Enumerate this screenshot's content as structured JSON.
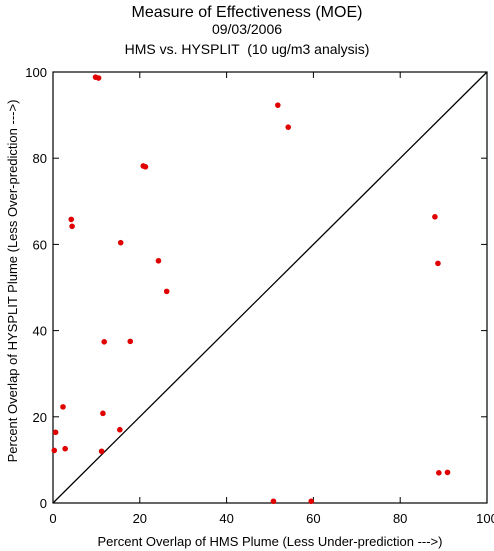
{
  "chart_data": {
    "type": "scatter",
    "title": "Measure of Effectiveness (MOE)",
    "subtitle_date": "09/03/2006",
    "subtitle_analysis": "HMS vs. HYSPLIT  (10 ug/m3 analysis)",
    "xlabel": "Percent Overlap of HMS Plume (Less Under-prediction --->)",
    "ylabel": "Percent Overlap of HYSPLIT Plume (Less Over-prediction --->)",
    "xlim": [
      0,
      100
    ],
    "ylim": [
      0,
      100
    ],
    "xticks": [
      0,
      20,
      40,
      60,
      80,
      100
    ],
    "yticks": [
      0,
      20,
      40,
      60,
      80,
      100
    ],
    "grid": false,
    "reference_line": "y = x diagonal",
    "marker_color": "#e00000",
    "series": [
      {
        "points": [
          {
            "x": 9.8,
            "y": 98.8
          },
          {
            "x": 10.5,
            "y": 98.6
          },
          {
            "x": 51.8,
            "y": 92.3
          },
          {
            "x": 54.2,
            "y": 87.2
          },
          {
            "x": 20.8,
            "y": 78.2
          },
          {
            "x": 21.3,
            "y": 78.0
          },
          {
            "x": 4.2,
            "y": 65.8
          },
          {
            "x": 4.4,
            "y": 64.2
          },
          {
            "x": 15.6,
            "y": 60.4
          },
          {
            "x": 24.3,
            "y": 56.2
          },
          {
            "x": 26.2,
            "y": 49.1
          },
          {
            "x": 11.8,
            "y": 37.4
          },
          {
            "x": 17.8,
            "y": 37.5
          },
          {
            "x": 88.0,
            "y": 66.4
          },
          {
            "x": 88.7,
            "y": 55.6
          },
          {
            "x": 2.3,
            "y": 22.3
          },
          {
            "x": 11.5,
            "y": 20.8
          },
          {
            "x": 15.4,
            "y": 17.0
          },
          {
            "x": 0.6,
            "y": 16.4
          },
          {
            "x": 2.8,
            "y": 12.6
          },
          {
            "x": 0.3,
            "y": 12.2
          },
          {
            "x": 11.2,
            "y": 12.0
          },
          {
            "x": 88.9,
            "y": 7.0
          },
          {
            "x": 90.9,
            "y": 7.1
          },
          {
            "x": 50.8,
            "y": 0.4
          },
          {
            "x": 59.5,
            "y": 0.4
          }
        ]
      }
    ]
  }
}
